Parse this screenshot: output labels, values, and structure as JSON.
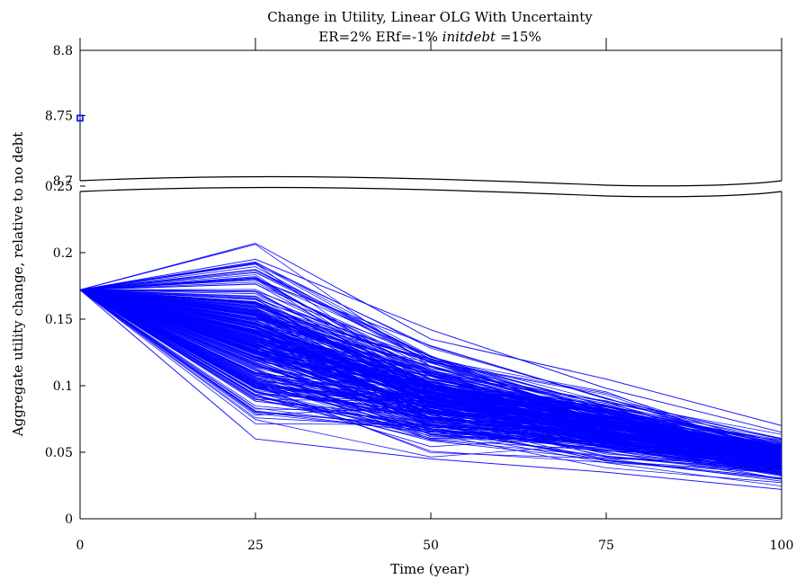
{
  "chart_data": {
    "type": "line",
    "title": "Change in Utility, Linear OLG With Uncertainty",
    "subtitle_parts": [
      "ER=2% ERf=-1% ",
      "initdebt",
      " =15%"
    ],
    "xlabel": "Time (year)",
    "ylabel": "Aggregate utility change, relative to no debt",
    "x_ticks": [
      "0",
      "25",
      "50",
      "75",
      "100"
    ],
    "x_tick_values": [
      0,
      25,
      50,
      75,
      100
    ],
    "xlim": [
      0,
      100
    ],
    "y_ticks_upper": [
      "8.7",
      "8.75",
      "8.8"
    ],
    "y_tick_values_upper": [
      8.7,
      8.75,
      8.8
    ],
    "ylim_upper": [
      8.7,
      8.8
    ],
    "y_ticks_lower": [
      "0",
      "0.05",
      "0.1",
      "0.15",
      "0.2",
      "0.25"
    ],
    "y_tick_values_lower": [
      0,
      0.05,
      0.1,
      0.15,
      0.2,
      0.25
    ],
    "ylim_lower": [
      0,
      0.25
    ],
    "axis_break": true,
    "grid": false,
    "series_color": "#0000ff",
    "marker": {
      "x": 0,
      "y": 8.748,
      "shape": "square"
    },
    "simulation": {
      "x": [
        0,
        25,
        50,
        75,
        100
      ],
      "start_value": 0.172,
      "path_count": 300,
      "representative_paths": [
        [
          0.172,
          0.207,
          0.135,
          0.105,
          0.07
        ],
        [
          0.172,
          0.195,
          0.142,
          0.098,
          0.065
        ],
        [
          0.172,
          0.18,
          0.13,
          0.09,
          0.06
        ],
        [
          0.172,
          0.165,
          0.12,
          0.085,
          0.055
        ],
        [
          0.172,
          0.15,
          0.11,
          0.078,
          0.05
        ],
        [
          0.172,
          0.13,
          0.1,
          0.072,
          0.045
        ],
        [
          0.172,
          0.11,
          0.09,
          0.065,
          0.04
        ],
        [
          0.172,
          0.095,
          0.08,
          0.058,
          0.035
        ],
        [
          0.172,
          0.08,
          0.07,
          0.05,
          0.03
        ],
        [
          0.172,
          0.06,
          0.045,
          0.035,
          0.022
        ]
      ],
      "range_min": [
        0.172,
        0.06,
        0.038,
        0.03,
        0.02
      ],
      "range_max": [
        0.172,
        0.207,
        0.143,
        0.106,
        0.07
      ]
    }
  }
}
